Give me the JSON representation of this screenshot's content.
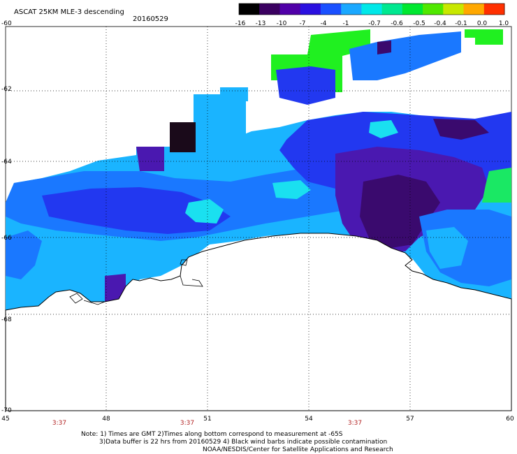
{
  "title": "ASCAT 25KM MLE-3 descending",
  "date": "20160529",
  "colorbar": {
    "labels": [
      "-16",
      "-13",
      "-10",
      "-7",
      "-4",
      "-1",
      "-0.7",
      "-0.6",
      "-0.5",
      "-0.4",
      "-0.1",
      "0.0",
      "1.0"
    ],
    "colors": [
      "#000000",
      "#3a0060",
      "#5000a8",
      "#2a10e0",
      "#1a50ff",
      "#1aa8ff",
      "#00e8e8",
      "#00e890",
      "#00e830",
      "#50e800",
      "#c8e800",
      "#ffa800",
      "#ff3000"
    ]
  },
  "lat_labels": [
    "-60",
    "-62",
    "-64",
    "-66",
    "-68",
    "-70"
  ],
  "lon_labels": [
    "45",
    "48",
    "51",
    "54",
    "57",
    "60"
  ],
  "time_labels": [
    "3:37",
    "3:37",
    "3:37"
  ],
  "notes": [
    "Note: 1) Times are GMT 2)Times along bottom correspond to measurement at -65S",
    "3)Data buffer is 22 hrs from 20160529 4) Black wind barbs indicate possible contamination",
    "NOAA/NESDIS/Center for Satellite Applications and Research"
  ],
  "palette": {
    "deep_purple": "#3a0a6e",
    "purple": "#4a18b0",
    "blue": "#2238f0",
    "mid_blue": "#1a78ff",
    "light_blue": "#1ab4ff",
    "cyan": "#1ae0f0",
    "green": "#1ae864",
    "bright_green": "#20f020",
    "black": "#1a0a1a"
  }
}
